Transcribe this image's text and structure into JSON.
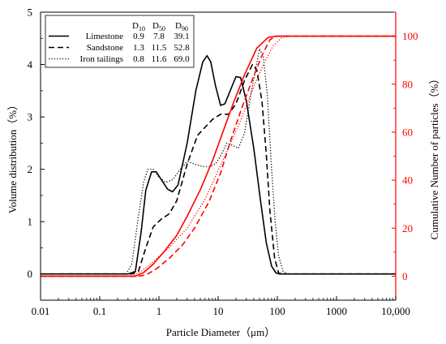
{
  "chart_data": {
    "type": "line",
    "xlabel": "Particle Diameter（μm）",
    "ylabel_left": "Volume distribution（%）",
    "ylabel_right": "Cumulative Number of particles（%）",
    "x_scale": "log",
    "xlim": [
      0.01,
      10000
    ],
    "x_ticks": [
      0.01,
      0.1,
      1,
      10,
      100,
      1000,
      10000
    ],
    "x_tick_labels": [
      "0.01",
      "0.1",
      "1",
      "10",
      "100",
      "1000",
      "10,000"
    ],
    "ylim_left": [
      -0.5,
      5
    ],
    "y_ticks_left": [
      0,
      1,
      2,
      3,
      4,
      5
    ],
    "ylim_right": [
      -10,
      110
    ],
    "y_ticks_right": [
      0,
      20,
      40,
      60,
      80,
      100
    ],
    "colors": {
      "volume_axis": "#000000",
      "cumulative_axis": "#ff0000"
    },
    "legend": {
      "position": "top-left",
      "headers": [
        "D10",
        "D50",
        "D90"
      ],
      "rows": [
        {
          "label": "Limestone",
          "style": "solid",
          "values": [
            "0.9",
            "7.8",
            "39.1"
          ]
        },
        {
          "label": "Sandstone",
          "style": "dashed",
          "values": [
            "1.3",
            "11.5",
            "52.8"
          ]
        },
        {
          "label": "Iron tailings",
          "style": "dotted",
          "values": [
            "0.8",
            "11.6",
            "69.0"
          ]
        }
      ]
    },
    "series": [
      {
        "name": "Limestone",
        "axis": "left",
        "color": "#000000",
        "style": "solid",
        "points": [
          [
            0.01,
            0
          ],
          [
            0.3,
            0
          ],
          [
            0.4,
            0.05
          ],
          [
            0.5,
            0.8
          ],
          [
            0.6,
            1.6
          ],
          [
            0.75,
            1.95
          ],
          [
            0.9,
            1.95
          ],
          [
            1.1,
            1.8
          ],
          [
            1.4,
            1.62
          ],
          [
            1.7,
            1.57
          ],
          [
            2.1,
            1.7
          ],
          [
            3,
            2.5
          ],
          [
            4.2,
            3.5
          ],
          [
            5.5,
            4.05
          ],
          [
            6.5,
            4.17
          ],
          [
            7.5,
            4.05
          ],
          [
            9,
            3.6
          ],
          [
            11,
            3.22
          ],
          [
            13,
            3.25
          ],
          [
            16,
            3.5
          ],
          [
            20,
            3.77
          ],
          [
            24,
            3.75
          ],
          [
            30,
            3.3
          ],
          [
            40,
            2.4
          ],
          [
            52,
            1.4
          ],
          [
            65,
            0.6
          ],
          [
            80,
            0.15
          ],
          [
            95,
            0.02
          ],
          [
            110,
            0
          ],
          [
            10000,
            0
          ]
        ]
      },
      {
        "name": "Sandstone",
        "axis": "left",
        "color": "#000000",
        "style": "dashed",
        "points": [
          [
            0.01,
            0
          ],
          [
            0.35,
            0
          ],
          [
            0.45,
            0.05
          ],
          [
            0.6,
            0.5
          ],
          [
            0.8,
            0.9
          ],
          [
            1.1,
            1.05
          ],
          [
            1.5,
            1.15
          ],
          [
            2,
            1.4
          ],
          [
            3,
            2.1
          ],
          [
            4.5,
            2.65
          ],
          [
            6,
            2.8
          ],
          [
            8,
            2.95
          ],
          [
            11,
            3.05
          ],
          [
            15,
            3.05
          ],
          [
            20,
            3.25
          ],
          [
            28,
            3.7
          ],
          [
            38,
            4.0
          ],
          [
            45,
            3.9
          ],
          [
            55,
            3.3
          ],
          [
            65,
            2.3
          ],
          [
            75,
            1.2
          ],
          [
            90,
            0.3
          ],
          [
            105,
            0.02
          ],
          [
            120,
            0
          ],
          [
            10000,
            0
          ]
        ]
      },
      {
        "name": "Iron tailings",
        "axis": "left",
        "color": "#000000",
        "style": "dotted",
        "points": [
          [
            0.01,
            0
          ],
          [
            0.28,
            0
          ],
          [
            0.35,
            0.2
          ],
          [
            0.45,
            1.1
          ],
          [
            0.55,
            1.75
          ],
          [
            0.65,
            2.0
          ],
          [
            0.8,
            2.0
          ],
          [
            1.0,
            1.85
          ],
          [
            1.3,
            1.75
          ],
          [
            1.7,
            1.8
          ],
          [
            2.3,
            2.0
          ],
          [
            3,
            2.15
          ],
          [
            4,
            2.1
          ],
          [
            5.5,
            2.05
          ],
          [
            7,
            2.05
          ],
          [
            9,
            2.1
          ],
          [
            11,
            2.25
          ],
          [
            14,
            2.5
          ],
          [
            18,
            2.45
          ],
          [
            22,
            2.4
          ],
          [
            28,
            2.7
          ],
          [
            38,
            3.6
          ],
          [
            50,
            4.3
          ],
          [
            58,
            4.15
          ],
          [
            68,
            3.4
          ],
          [
            80,
            2.0
          ],
          [
            92,
            1.0
          ],
          [
            105,
            0.35
          ],
          [
            125,
            0.05
          ],
          [
            150,
            0
          ],
          [
            10000,
            0
          ]
        ]
      },
      {
        "name": "",
        "axis": "right",
        "color": "#ff0000",
        "style": "solid",
        "points": [
          [
            0.01,
            0
          ],
          [
            0.4,
            0
          ],
          [
            0.55,
            1.5
          ],
          [
            0.8,
            5
          ],
          [
            1.2,
            10
          ],
          [
            2,
            17
          ],
          [
            3,
            25
          ],
          [
            5,
            36
          ],
          [
            8,
            48
          ],
          [
            12,
            60
          ],
          [
            18,
            72
          ],
          [
            28,
            84
          ],
          [
            45,
            95
          ],
          [
            70,
            99.5
          ],
          [
            100,
            100
          ],
          [
            10000,
            100
          ]
        ]
      },
      {
        "name": "",
        "axis": "right",
        "color": "#ff0000",
        "style": "dashed",
        "points": [
          [
            0.01,
            0
          ],
          [
            0.45,
            0
          ],
          [
            0.6,
            0.5
          ],
          [
            0.9,
            3
          ],
          [
            1.5,
            7.5
          ],
          [
            2.5,
            13
          ],
          [
            4,
            20
          ],
          [
            7,
            31
          ],
          [
            11,
            43
          ],
          [
            16,
            56
          ],
          [
            25,
            70
          ],
          [
            38,
            82
          ],
          [
            55,
            92
          ],
          [
            75,
            98.5
          ],
          [
            95,
            100
          ],
          [
            10000,
            100
          ]
        ]
      },
      {
        "name": "",
        "axis": "right",
        "color": "#ff0000",
        "style": "dotted",
        "points": [
          [
            0.01,
            0
          ],
          [
            0.35,
            0
          ],
          [
            0.5,
            2
          ],
          [
            0.8,
            6
          ],
          [
            1.5,
            12
          ],
          [
            3,
            20
          ],
          [
            6,
            32
          ],
          [
            10,
            44
          ],
          [
            16,
            55
          ],
          [
            25,
            66
          ],
          [
            40,
            79
          ],
          [
            60,
            89
          ],
          [
            85,
            96
          ],
          [
            120,
            99.5
          ],
          [
            160,
            100
          ],
          [
            10000,
            100
          ]
        ]
      }
    ]
  }
}
